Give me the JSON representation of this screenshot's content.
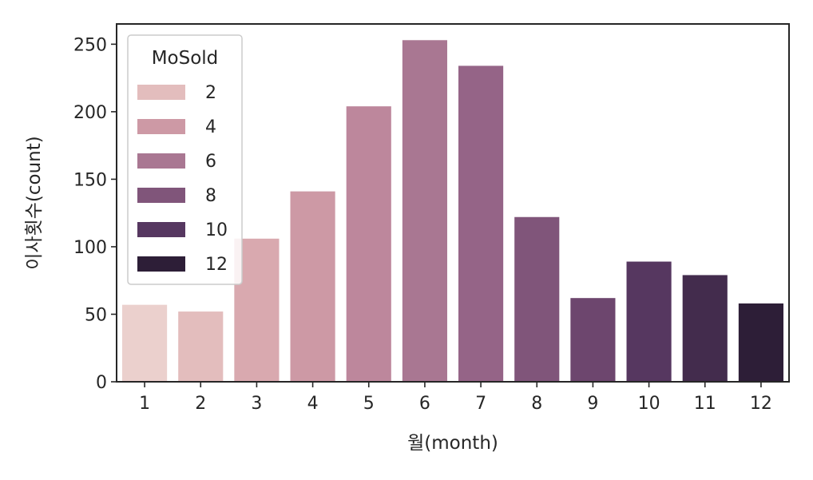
{
  "chart_data": {
    "type": "bar",
    "xlabel": "월(month)",
    "ylabel": "이사횟수(count)",
    "categories": [
      "1",
      "2",
      "3",
      "4",
      "5",
      "6",
      "7",
      "8",
      "9",
      "10",
      "11",
      "12"
    ],
    "values": [
      57,
      52,
      106,
      141,
      204,
      253,
      234,
      122,
      62,
      89,
      79,
      58
    ],
    "colors": [
      "#ebd0cd",
      "#e3bdbd",
      "#d9a9af",
      "#cd99a5",
      "#bd879c",
      "#a97792",
      "#956487",
      "#80557a",
      "#6d466e",
      "#563760",
      "#432c4d",
      "#2d1e37"
    ],
    "ylim": [
      0,
      265
    ],
    "yticks": [
      0,
      50,
      100,
      150,
      200,
      250
    ],
    "grid": false,
    "legend": {
      "title": "MoSold",
      "placement": "top-left",
      "entries": [
        {
          "label": "2",
          "color": "#e3bdbd"
        },
        {
          "label": "4",
          "color": "#cd99a5"
        },
        {
          "label": "6",
          "color": "#a97792"
        },
        {
          "label": "8",
          "color": "#80557a"
        },
        {
          "label": "10",
          "color": "#563760"
        },
        {
          "label": "12",
          "color": "#2d1e37"
        }
      ]
    }
  }
}
